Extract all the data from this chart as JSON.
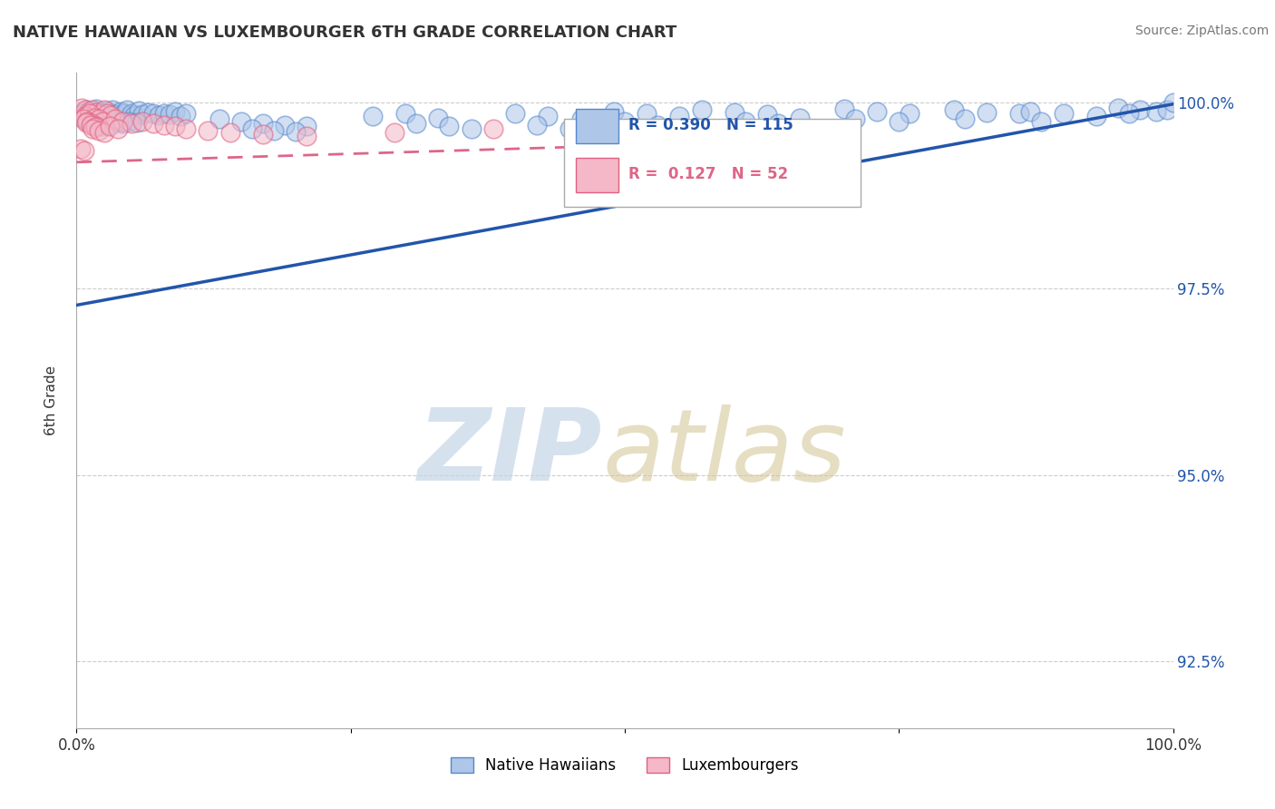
{
  "title": "NATIVE HAWAIIAN VS LUXEMBOURGER 6TH GRADE CORRELATION CHART",
  "source": "Source: ZipAtlas.com",
  "ylabel": "6th Grade",
  "xlim": [
    0.0,
    1.0
  ],
  "ylim": [
    0.916,
    1.004
  ],
  "yticks": [
    0.925,
    0.95,
    0.975,
    1.0
  ],
  "ytick_labels": [
    "92.5%",
    "95.0%",
    "97.5%",
    "100.0%"
  ],
  "xtick_labels": [
    "0.0%",
    "100.0%"
  ],
  "blue_R": 0.39,
  "blue_N": 115,
  "pink_R": 0.127,
  "pink_N": 52,
  "blue_color": "#aec6e8",
  "pink_color": "#f4b8c8",
  "blue_edge_color": "#5588cc",
  "pink_edge_color": "#e06080",
  "blue_line_color": "#2255aa",
  "pink_line_color": "#dd6688",
  "legend_blue_label": "Native Hawaiians",
  "legend_pink_label": "Luxembourgers",
  "blue_trend": [
    0.9728,
    0.9998
  ],
  "pink_trend": [
    0.992,
    0.9965
  ],
  "blue_scatter_x": [
    0.005,
    0.01,
    0.015,
    0.018,
    0.022,
    0.025,
    0.028,
    0.03,
    0.033,
    0.036,
    0.04,
    0.043,
    0.046,
    0.05,
    0.053,
    0.057,
    0.06,
    0.065,
    0.07,
    0.075,
    0.08,
    0.085,
    0.09,
    0.095,
    0.1,
    0.008,
    0.012,
    0.016,
    0.02,
    0.024,
    0.028,
    0.035,
    0.042,
    0.048,
    0.055,
    0.015,
    0.022,
    0.03,
    0.13,
    0.15,
    0.17,
    0.19,
    0.21,
    0.16,
    0.18,
    0.2,
    0.27,
    0.3,
    0.33,
    0.31,
    0.34,
    0.36,
    0.4,
    0.43,
    0.46,
    0.42,
    0.45,
    0.49,
    0.52,
    0.55,
    0.5,
    0.53,
    0.57,
    0.6,
    0.63,
    0.66,
    0.61,
    0.64,
    0.7,
    0.73,
    0.76,
    0.71,
    0.75,
    0.8,
    0.83,
    0.86,
    0.81,
    0.87,
    0.9,
    0.93,
    0.88,
    0.95,
    0.97,
    0.985,
    0.995,
    1.0,
    0.96
  ],
  "blue_scatter_y": [
    0.9985,
    0.999,
    0.9988,
    0.9992,
    0.9987,
    0.9983,
    0.9989,
    0.9986,
    0.9991,
    0.9984,
    0.9988,
    0.9985,
    0.999,
    0.9986,
    0.9983,
    0.9989,
    0.9984,
    0.9987,
    0.9985,
    0.9983,
    0.9986,
    0.9984,
    0.9988,
    0.9982,
    0.9985,
    0.9978,
    0.9981,
    0.9979,
    0.9977,
    0.998,
    0.9976,
    0.9974,
    0.9972,
    0.9975,
    0.9973,
    0.997,
    0.9968,
    0.9971,
    0.9978,
    0.9975,
    0.9972,
    0.997,
    0.9968,
    0.9965,
    0.9963,
    0.9961,
    0.9982,
    0.9985,
    0.998,
    0.9972,
    0.9968,
    0.9965,
    0.9985,
    0.9982,
    0.9978,
    0.997,
    0.9965,
    0.9988,
    0.9985,
    0.9982,
    0.9975,
    0.997,
    0.999,
    0.9987,
    0.9984,
    0.998,
    0.9975,
    0.9972,
    0.9992,
    0.9988,
    0.9985,
    0.9978,
    0.9975,
    0.999,
    0.9987,
    0.9985,
    0.9978,
    0.9988,
    0.9985,
    0.9982,
    0.9975,
    0.9993,
    0.999,
    0.9988,
    0.9991,
    1.0,
    0.9985
  ],
  "pink_scatter_x": [
    0.005,
    0.008,
    0.011,
    0.015,
    0.018,
    0.021,
    0.025,
    0.028,
    0.031,
    0.008,
    0.012,
    0.016,
    0.02,
    0.024,
    0.006,
    0.01,
    0.014,
    0.018,
    0.009,
    0.013,
    0.017,
    0.015,
    0.02,
    0.025,
    0.035,
    0.042,
    0.05,
    0.03,
    0.038,
    0.06,
    0.07,
    0.08,
    0.09,
    0.1,
    0.12,
    0.14,
    0.17,
    0.21,
    0.29,
    0.38,
    0.004,
    0.007
  ],
  "pink_scatter_y": [
    0.9993,
    0.999,
    0.9988,
    0.9991,
    0.9987,
    0.9984,
    0.999,
    0.9986,
    0.9983,
    0.9982,
    0.9985,
    0.998,
    0.9978,
    0.9975,
    0.9978,
    0.9975,
    0.9972,
    0.9969,
    0.9973,
    0.997,
    0.9967,
    0.9965,
    0.9962,
    0.996,
    0.9978,
    0.9975,
    0.9972,
    0.9968,
    0.9965,
    0.9975,
    0.9972,
    0.997,
    0.9968,
    0.9965,
    0.9962,
    0.996,
    0.9958,
    0.9955,
    0.996,
    0.9965,
    0.9938,
    0.9935
  ]
}
